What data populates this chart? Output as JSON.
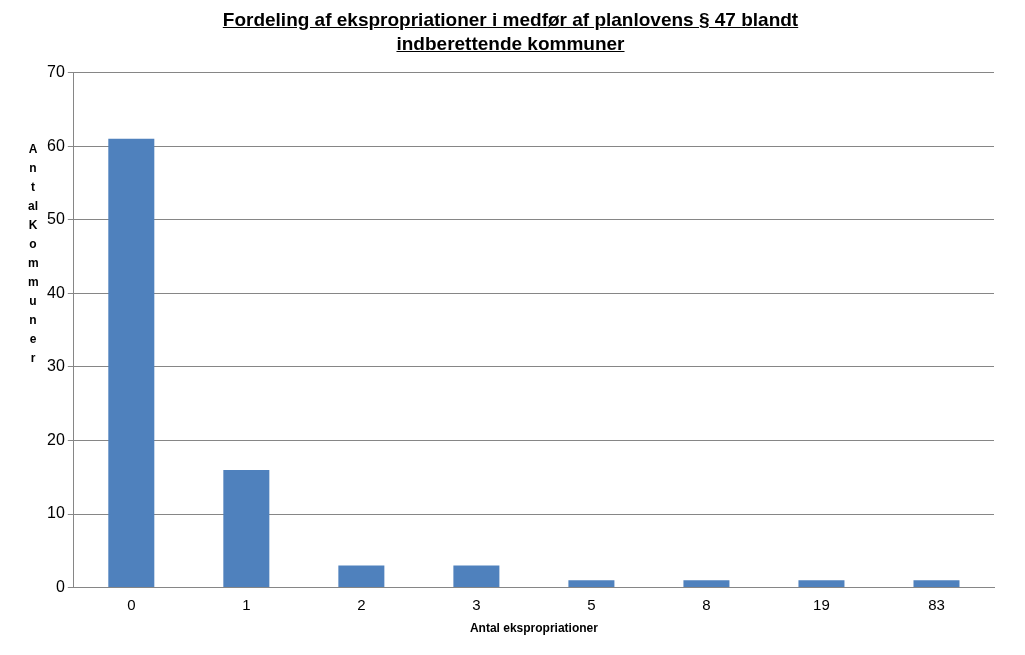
{
  "chart_data": {
    "type": "bar",
    "title": "Fordeling af ekspropriationer i medfør af planlovens § 47 blandt indberettende kommuner",
    "xlabel": "Antal ekspropriationer",
    "ylabel": "Antal Kommuner",
    "categories": [
      "0",
      "1",
      "2",
      "3",
      "5",
      "8",
      "19",
      "83"
    ],
    "series": [
      {
        "color": "#4f81bd",
        "values": [
          61,
          16,
          3,
          3,
          1,
          1,
          1,
          1
        ]
      }
    ],
    "ylim": [
      0,
      70
    ],
    "yticks": [
      0,
      10,
      20,
      30,
      40,
      50,
      60,
      70
    ],
    "grid": "y",
    "legend": false
  }
}
